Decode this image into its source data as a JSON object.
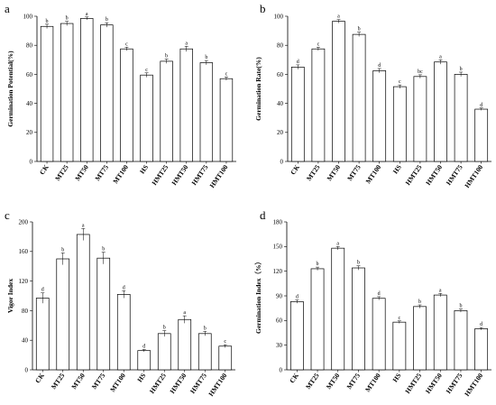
{
  "chart_data": [
    {
      "type": "bar",
      "panel": "a",
      "ylabel": "Germination Potential(%)",
      "ylim": [
        0,
        100
      ],
      "yticks": [
        0,
        20,
        40,
        60,
        80,
        100
      ],
      "categories": [
        "CK",
        "MT25",
        "MT50",
        "MT75",
        "MT100",
        "HS",
        "HMT25",
        "HMT50",
        "HMT75",
        "HMT100"
      ],
      "values": [
        93,
        95,
        98.5,
        94,
        77.5,
        59.5,
        69,
        77.5,
        68,
        57
      ],
      "errors": [
        1.5,
        1.5,
        1,
        1.5,
        1.2,
        1.5,
        1.5,
        1.8,
        1.5,
        1.2
      ],
      "significance": [
        "b",
        "b",
        "a",
        "b",
        "c",
        "c",
        "b",
        "a",
        "b",
        "c"
      ]
    },
    {
      "type": "bar",
      "panel": "b",
      "ylabel": "Germination Rate(%)",
      "ylim": [
        0,
        100
      ],
      "yticks": [
        0,
        20,
        40,
        60,
        80,
        100
      ],
      "categories": [
        "CK",
        "MT25",
        "MT50",
        "MT75",
        "MT100",
        "HS",
        "HMT25",
        "HMT50",
        "HMT75",
        "HMT100"
      ],
      "values": [
        65,
        77.5,
        96.5,
        87.5,
        62.5,
        51.5,
        58.5,
        68.5,
        60,
        36
      ],
      "errors": [
        1.5,
        1.2,
        1.2,
        1.5,
        1.5,
        1.2,
        1.2,
        1.5,
        1.5,
        0.8
      ],
      "significance": [
        "d",
        "c",
        "a",
        "b",
        "d",
        "c",
        "bc",
        "a",
        "b",
        "d"
      ]
    },
    {
      "type": "bar",
      "panel": "c",
      "ylabel": "Vigor Index",
      "ylim": [
        0,
        200
      ],
      "yticks": [
        0,
        40,
        80,
        120,
        160,
        200
      ],
      "categories": [
        "CK",
        "MT25",
        "MT50",
        "MT75",
        "MT100",
        "HS",
        "HMT25",
        "HMT50",
        "HMT75",
        "HMT100"
      ],
      "values": [
        97,
        150,
        183,
        151,
        102,
        26,
        49,
        68,
        49,
        32
      ],
      "errors": [
        7,
        8,
        8,
        8,
        5,
        1.5,
        4,
        5,
        3,
        2
      ],
      "significance": [
        "d",
        "b",
        "a",
        "b",
        "d",
        "d",
        "b",
        "a",
        "b",
        "c"
      ]
    },
    {
      "type": "bar",
      "panel": "d",
      "ylabel": "Germination Index（%）",
      "ylim": [
        0,
        180
      ],
      "yticks": [
        0,
        30,
        60,
        90,
        120,
        150,
        180
      ],
      "categories": [
        "CK",
        "MT25",
        "MT50",
        "MT75",
        "MT100",
        "HS",
        "HMT25",
        "HMT50",
        "HMT75",
        "HMT100"
      ],
      "values": [
        83,
        123,
        148,
        124,
        87,
        58,
        77,
        91,
        72,
        50
      ],
      "errors": [
        2,
        2,
        2,
        2.5,
        2,
        1.5,
        2,
        2,
        2,
        1.5
      ],
      "significance": [
        "d",
        "b",
        "a",
        "b",
        "d",
        "c",
        "b",
        "a",
        "b",
        "d"
      ]
    }
  ]
}
